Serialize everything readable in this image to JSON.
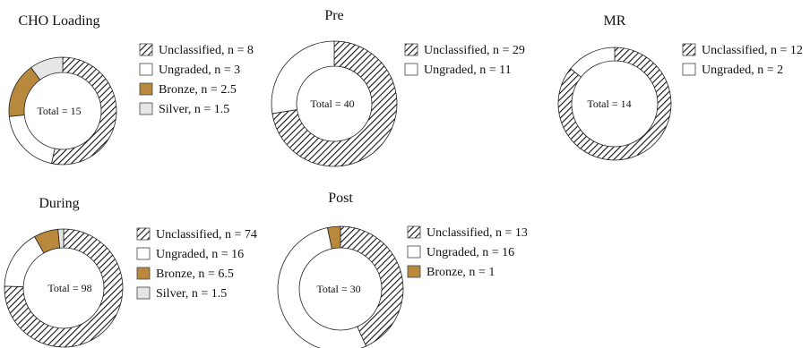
{
  "chart_data": [
    {
      "type": "pie",
      "title": "CHO Loading",
      "total_label": "Total = 15",
      "series": [
        {
          "name": "Unclassified",
          "value": 8,
          "legend": "Unclassified, n = 8",
          "fill": "hatch"
        },
        {
          "name": "Ungraded",
          "value": 3,
          "legend": "Ungraded, n = 3",
          "fill": "#ffffff"
        },
        {
          "name": "Bronze",
          "value": 2.5,
          "legend": "Bronze, n = 2.5",
          "fill": "#b8893c"
        },
        {
          "name": "Silver",
          "value": 1.5,
          "legend": "Silver, n = 1.5",
          "fill": "#e6e6e6"
        }
      ]
    },
    {
      "type": "pie",
      "title": "Pre",
      "total_label": "Total = 40",
      "series": [
        {
          "name": "Unclassified",
          "value": 29,
          "legend": "Unclassified, n = 29",
          "fill": "hatch"
        },
        {
          "name": "Ungraded",
          "value": 11,
          "legend": "Ungraded, n = 11",
          "fill": "#ffffff"
        }
      ]
    },
    {
      "type": "pie",
      "title": "MR",
      "total_label": "Total = 14",
      "series": [
        {
          "name": "Unclassified",
          "value": 12,
          "legend": "Unclassified, n = 12",
          "fill": "hatch"
        },
        {
          "name": "Ungraded",
          "value": 2,
          "legend": "Ungraded, n = 2",
          "fill": "#ffffff"
        }
      ]
    },
    {
      "type": "pie",
      "title": "During",
      "total_label": "Total = 98",
      "series": [
        {
          "name": "Unclassified",
          "value": 74,
          "legend": "Unclassified, n = 74",
          "fill": "hatch"
        },
        {
          "name": "Ungraded",
          "value": 16,
          "legend": "Ungraded, n = 16",
          "fill": "#ffffff"
        },
        {
          "name": "Bronze",
          "value": 6.5,
          "legend": "Bronze, n = 6.5",
          "fill": "#b8893c"
        },
        {
          "name": "Silver",
          "value": 1.5,
          "legend": "Silver, n = 1.5",
          "fill": "#e6e6e6"
        }
      ]
    },
    {
      "type": "pie",
      "title": "Post",
      "total_label": "Total = 30",
      "series": [
        {
          "name": "Unclassified",
          "value": 13,
          "legend": "Unclassified, n = 13",
          "fill": "hatch"
        },
        {
          "name": "Ungraded",
          "value": 16,
          "legend": "Ungraded, n = 16",
          "fill": "#ffffff"
        },
        {
          "name": "Bronze",
          "value": 1,
          "legend": "Bronze, n = 1",
          "fill": "#b8893c"
        }
      ]
    }
  ]
}
